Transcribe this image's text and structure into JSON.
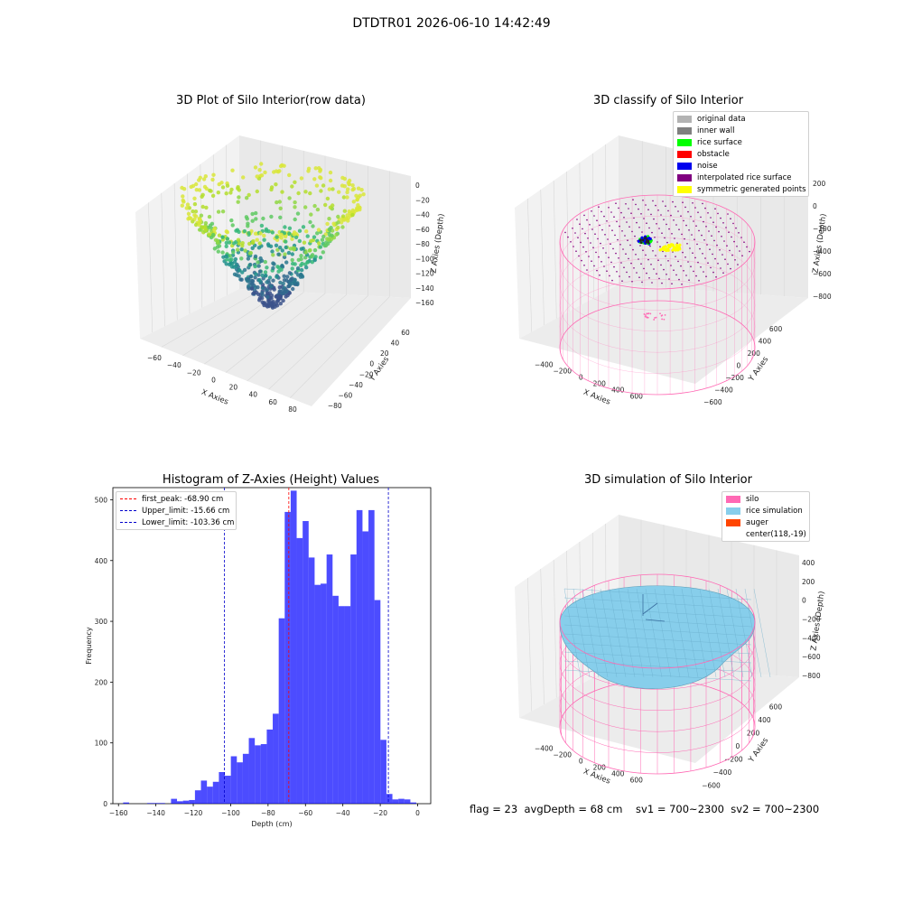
{
  "suptitle": "DTDTR01 2026-06-10 14:42:49",
  "plots": {
    "raw": {
      "title": "3D Plot of Silo Interior(row data)",
      "xlabel": "X Axies",
      "ylabel": "Y Axies",
      "zlabel": "Z Axies (Depth)",
      "xticks": [
        "−60",
        "−40",
        "−20",
        "0",
        "20",
        "40",
        "60",
        "80"
      ],
      "yticks": [
        "−80",
        "−60",
        "−40",
        "−20",
        "0",
        "20",
        "40",
        "60"
      ],
      "zticks": [
        "0",
        "−20",
        "−40",
        "−60",
        "−80",
        "−100",
        "−120",
        "−140",
        "−160"
      ]
    },
    "classify": {
      "title": "3D classify of Silo Interior",
      "xlabel": "X Axies",
      "ylabel": "Y Axies",
      "zlabel": "Z Axies (Depth)",
      "xticks": [
        "−400",
        "−200",
        "0",
        "200",
        "400",
        "600"
      ],
      "yticks": [
        "−600",
        "−400",
        "−200",
        "0",
        "200",
        "400",
        "600"
      ],
      "zticks": [
        "200",
        "0",
        "−200",
        "−400",
        "−600",
        "−800"
      ],
      "legend": [
        {
          "label": "original data",
          "color": "#b3b3b3"
        },
        {
          "label": "inner wall",
          "color": "#808080"
        },
        {
          "label": "rice surface",
          "color": "#00ff00"
        },
        {
          "label": "obstacle",
          "color": "#ff0000"
        },
        {
          "label": "noise",
          "color": "#0000ee"
        },
        {
          "label": "interpolated rice surface",
          "color": "#800080"
        },
        {
          "label": "symmetric generated points",
          "color": "#ffff00"
        }
      ]
    },
    "simulation": {
      "title": "3D simulation of Silo Interior",
      "xlabel": "X Axies",
      "ylabel": "Y Axies",
      "zlabel": "Z Axies (Depth)",
      "xticks": [
        "−400",
        "−200",
        "0",
        "200",
        "400",
        "600"
      ],
      "yticks": [
        "−600",
        "−400",
        "−200",
        "0",
        "200",
        "400",
        "600"
      ],
      "zticks": [
        "400",
        "200",
        "0",
        "−200",
        "−400",
        "−600",
        "−800"
      ],
      "legend": [
        {
          "label": "silo",
          "color": "#ff69b4"
        },
        {
          "label": "rice simulation",
          "color": "#87ceeb"
        },
        {
          "label": "auger",
          "color": "#ff4500"
        },
        {
          "label": "center(118,-19)",
          "color": "transparent"
        }
      ]
    }
  },
  "chart_data": {
    "type": "bar",
    "title": "Histogram of Z-Axies (Height) Values",
    "xlabel": "Depth (cm)",
    "ylabel": "Frequency",
    "xlim": [
      -163,
      7
    ],
    "ylim": [
      0,
      520
    ],
    "xticks": [
      -160,
      -140,
      -120,
      -100,
      -80,
      -60,
      -40,
      -20,
      0
    ],
    "yticks": [
      0,
      100,
      200,
      300,
      400,
      500
    ],
    "bin_width": 3.2,
    "bin_start": -157.5,
    "values": [
      2,
      0,
      0,
      0,
      1,
      1,
      1,
      0,
      8,
      4,
      5,
      6,
      22,
      38,
      28,
      36,
      52,
      46,
      78,
      68,
      82,
      108,
      96,
      98,
      122,
      148,
      305,
      480,
      515,
      437,
      465,
      405,
      360,
      362,
      410,
      342,
      325,
      325,
      410,
      483,
      448,
      483,
      335,
      105,
      16,
      7,
      8,
      7,
      2
    ],
    "color": "#0000ff",
    "vlines": [
      {
        "label": "first_peak: -68.90 cm",
        "x": -68.9,
        "color": "#ff0000"
      },
      {
        "label": "Upper_limit: -15.66 cm",
        "x": -15.66,
        "color": "#0000cc"
      },
      {
        "label": "Lower_limit: -103.36 cm",
        "x": -103.36,
        "color": "#0000cc"
      }
    ]
  },
  "footer": "flag = 23  avgDepth = 68 cm    sv1 = 700~2300  sv2 = 700~2300"
}
